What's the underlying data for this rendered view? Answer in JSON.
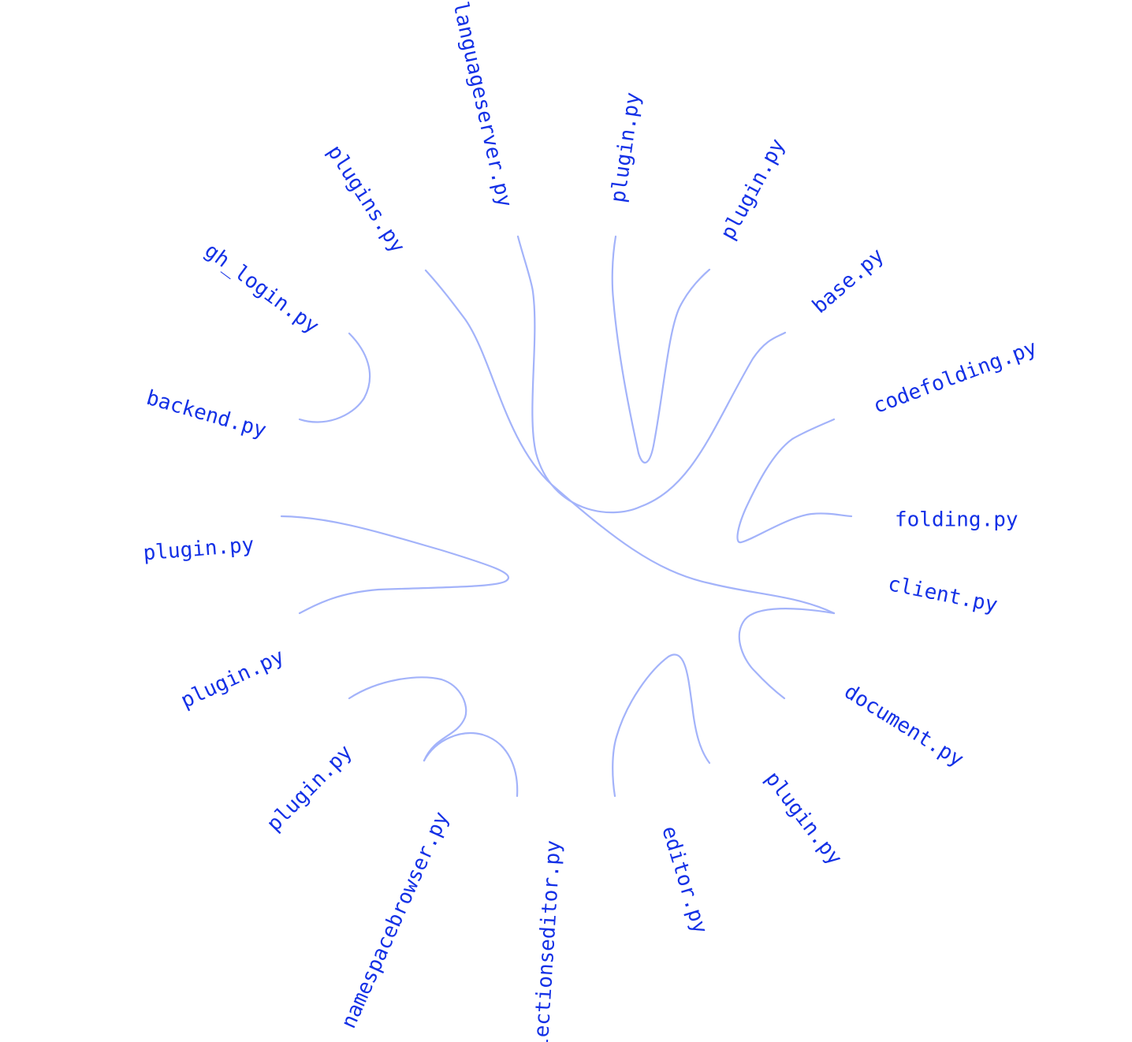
{
  "diagram": {
    "type": "hierarchical edge bundling",
    "label_color": "#1330e6",
    "edge_color": "#a3b3fa",
    "background": "#ffffff",
    "nodes": [
      {
        "id": "n_codefolding",
        "label": "codefolding.py"
      },
      {
        "id": "n_base",
        "label": "base.py"
      },
      {
        "id": "n_plugin_nne",
        "label": "plugin.py"
      },
      {
        "id": "n_plugin_n",
        "label": "plugin.py"
      },
      {
        "id": "n_languageserver",
        "label": "languageserver.py"
      },
      {
        "id": "n_plugins",
        "label": "plugins.py"
      },
      {
        "id": "n_gh_login",
        "label": "gh_login.py"
      },
      {
        "id": "n_backend",
        "label": "backend.py"
      },
      {
        "id": "n_plugin_w",
        "label": "plugin.py"
      },
      {
        "id": "n_plugin_wsw",
        "label": "plugin.py"
      },
      {
        "id": "n_plugin_sw",
        "label": "plugin.py"
      },
      {
        "id": "n_namespacebrowser",
        "label": "namespacebrowser.py"
      },
      {
        "id": "n_collectionseditor",
        "label": "llectionseditor.py"
      },
      {
        "id": "n_editor",
        "label": "editor.py"
      },
      {
        "id": "n_plugin_s",
        "label": "plugin.py"
      },
      {
        "id": "n_document",
        "label": "document.py"
      },
      {
        "id": "n_client",
        "label": "client.py"
      },
      {
        "id": "n_folding",
        "label": "folding.py"
      }
    ],
    "edges": [
      {
        "source": "n_plugins",
        "target": "n_client"
      },
      {
        "source": "n_languageserver",
        "target": "n_base"
      },
      {
        "source": "n_plugin_n",
        "target": "n_plugin_nne"
      },
      {
        "source": "n_gh_login",
        "target": "n_backend"
      },
      {
        "source": "n_codefolding",
        "target": "n_folding"
      },
      {
        "source": "n_plugin_w",
        "target": "n_plugin_wsw"
      },
      {
        "source": "n_client",
        "target": "n_document"
      },
      {
        "source": "n_editor",
        "target": "n_plugin_s"
      },
      {
        "source": "n_plugin_sw",
        "target": "n_namespacebrowser"
      },
      {
        "source": "n_namespacebrowser",
        "target": "n_collectionseditor"
      }
    ]
  }
}
